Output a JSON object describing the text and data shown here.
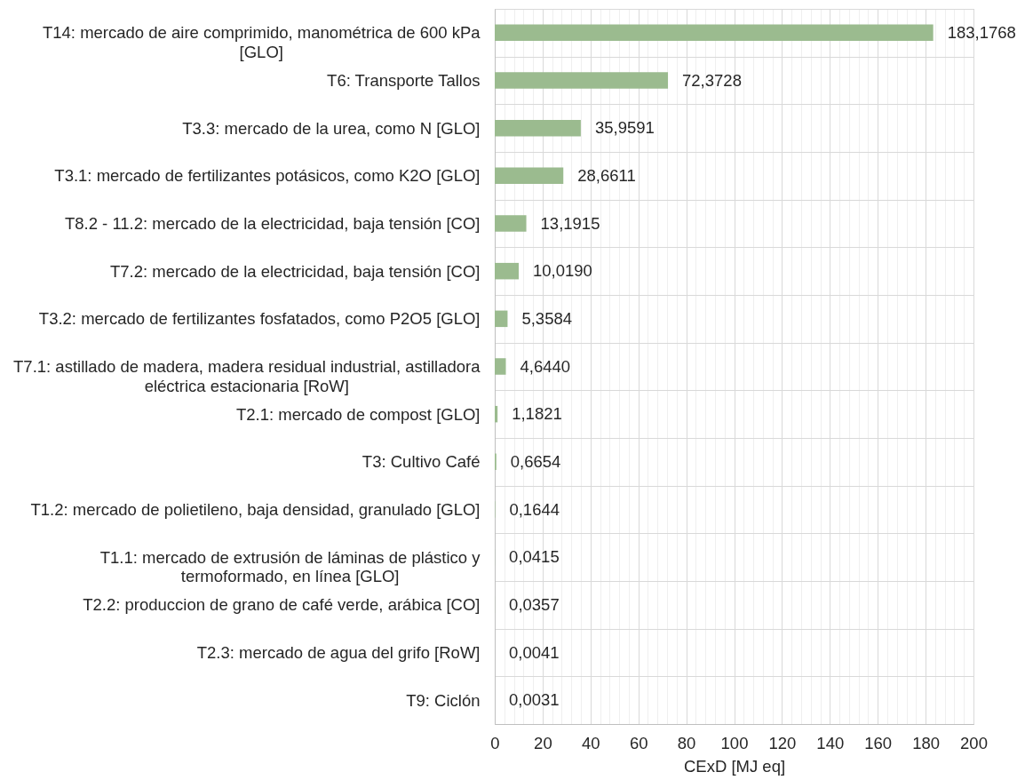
{
  "chart_data": {
    "type": "bar",
    "orientation": "horizontal",
    "xlabel": "CExD [MJ eq]",
    "categories": [
      "T14: mercado de aire comprimido, manométrica de 600 kPa [GLO]",
      "T6: Transporte Tallos",
      "T3.3: mercado de la urea, como N [GLO]",
      "T3.1: mercado de fertilizantes potásicos, como K2O [GLO]",
      "T8.2 - 11.2: mercado de la electricidad, baja tensión [CO]",
      "T7.2: mercado de la electricidad, baja tensión [CO]",
      "T3.2: mercado de fertilizantes fosfatados, como P2O5 [GLO]",
      "T7.1: astillado de madera, madera residual industrial, astilladora eléctrica estacionaria [RoW]",
      "T2.1: mercado de compost [GLO]",
      "T3: Cultivo Café",
      "T1.2: mercado de polietileno, baja densidad, granulado [GLO]",
      "T1.1: mercado de extrusión de láminas de plástico y termoformado, en línea [GLO]",
      "T2.2: produccion de grano de café verde, arábica [CO]",
      "T2.3: mercado de agua del grifo [RoW]",
      "T9: Ciclón"
    ],
    "values": [
      183.1768,
      72.3728,
      35.9591,
      28.6611,
      13.1915,
      10.019,
      5.3584,
      4.644,
      1.1821,
      0.6654,
      0.1644,
      0.0415,
      0.0357,
      0.0041,
      0.0031
    ],
    "value_labels": [
      "183,1768",
      "72,3728",
      "35,9591",
      "28,6611",
      "13,1915",
      "10,0190",
      "5,3584",
      "4,6440",
      "1,1821",
      "0,6654",
      "0,1644",
      "0,0415",
      "0,0357",
      "0,0041",
      "0,0031"
    ],
    "color": "#9bbb8f",
    "xlim": [
      0,
      200
    ],
    "xticks": [
      0,
      {
        "value": 4,
        "label": null
      },
      {
        "value": 8,
        "label": null
      },
      {
        "value": 12,
        "label": null
      },
      {
        "value": 16,
        "label": null
      },
      20,
      {
        "value": 24,
        "label": null
      },
      {
        "value": 28,
        "label": null
      },
      {
        "value": 32,
        "label": null
      },
      {
        "value": 36,
        "label": null
      },
      40,
      {
        "value": 44,
        "label": null
      },
      {
        "value": 48,
        "label": null
      },
      {
        "value": 52,
        "label": null
      },
      {
        "value": 56,
        "label": null
      },
      60,
      {
        "value": 64,
        "label": null
      },
      {
        "value": 68,
        "label": null
      },
      {
        "value": 72,
        "label": null
      },
      {
        "value": 76,
        "label": null
      },
      80,
      {
        "value": 84,
        "label": null
      },
      {
        "value": 88,
        "label": null
      },
      {
        "value": 92,
        "label": null
      },
      {
        "value": 96,
        "label": null
      },
      100,
      {
        "value": 104,
        "label": null
      },
      {
        "value": 108,
        "label": null
      },
      {
        "value": 112,
        "label": null
      },
      {
        "value": 116,
        "label": null
      },
      120,
      {
        "value": 124,
        "label": null
      },
      {
        "value": 128,
        "label": null
      },
      {
        "value": 132,
        "label": null
      },
      {
        "value": 136,
        "label": null
      },
      140,
      {
        "value": 144,
        "label": null
      },
      {
        "value": 148,
        "label": null
      },
      {
        "value": 152,
        "label": null
      },
      {
        "value": 156,
        "label": null
      },
      160,
      {
        "value": 164,
        "label": null
      },
      {
        "value": 168,
        "label": null
      },
      {
        "value": 172,
        "label": null
      },
      {
        "value": 176,
        "label": null
      },
      180,
      {
        "value": 184,
        "label": null
      },
      {
        "value": 188,
        "label": null
      },
      {
        "value": 192,
        "label": null
      },
      {
        "value": 196,
        "label": null
      },
      200
    ],
    "grid": true
  }
}
